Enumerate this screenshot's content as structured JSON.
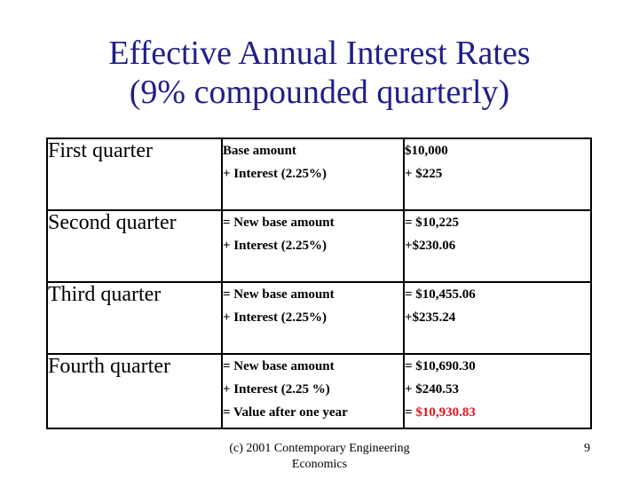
{
  "title": {
    "line1": "Effective Annual Interest Rates",
    "line2": "(9% compounded quarterly)"
  },
  "table": {
    "rows": [
      {
        "quarter": "First quarter",
        "details": [
          "Base amount",
          "+ Interest (2.25%)"
        ],
        "amounts": [
          "$10,000",
          "+ $225"
        ]
      },
      {
        "quarter": "Second quarter",
        "details": [
          "= New base amount",
          "+ Interest (2.25%)"
        ],
        "amounts": [
          "= $10,225",
          "+$230.06"
        ]
      },
      {
        "quarter": "Third quarter",
        "details": [
          "= New base amount",
          "+ Interest (2.25%)"
        ],
        "amounts": [
          "= $10,455.06",
          "+$235.24"
        ]
      },
      {
        "quarter": "Fourth quarter",
        "details": [
          "= New base amount",
          "+ Interest (2.25 %)",
          "= Value after one year"
        ],
        "amounts": [
          "= $10,690.30",
          "+ $240.53"
        ],
        "final_prefix": "= ",
        "final_value": "$10,930.83"
      }
    ]
  },
  "footer": {
    "line1": "(c) 2001 Contemporary Engineering",
    "line2": "Economics"
  },
  "page_number": "9",
  "colors": {
    "title": "#1f1f8a",
    "highlight": "#e0141e"
  }
}
